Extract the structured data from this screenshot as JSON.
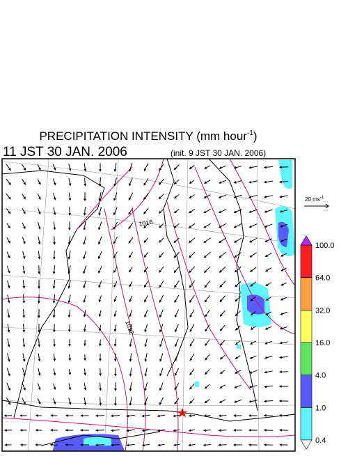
{
  "title": {
    "text": "PRECIPITATION INTENSITY (mm hour",
    "superscript": "-1",
    "close": ")"
  },
  "valid_time": "11 JST 30 JAN. 2006",
  "init_time": "(init. 9 JST 30 JAN. 2006)",
  "vector_legend": {
    "text": "20 ms",
    "superscript": "-1"
  },
  "colorbar": {
    "levels": [
      0.4,
      {
        "value": 1,
        "label": "1.0"
      },
      {
        "value": 4,
        "label": "4.0"
      },
      {
        "value": 16,
        "label": "16.0"
      },
      {
        "value": 32,
        "label": "32.0"
      },
      {
        "value": 64,
        "label": "64.0"
      },
      {
        "value": 100,
        "label": "100.0"
      }
    ],
    "colors": [
      "#5ff5ff",
      "#5a5aff",
      "#5fe65f",
      "#ffff5a",
      "#ffa03c",
      "#ff1e1e"
    ],
    "over_color": "#b428ff",
    "under_color": "#ffffff"
  },
  "isobar_labels": [
    "1016",
    "1012"
  ]
}
